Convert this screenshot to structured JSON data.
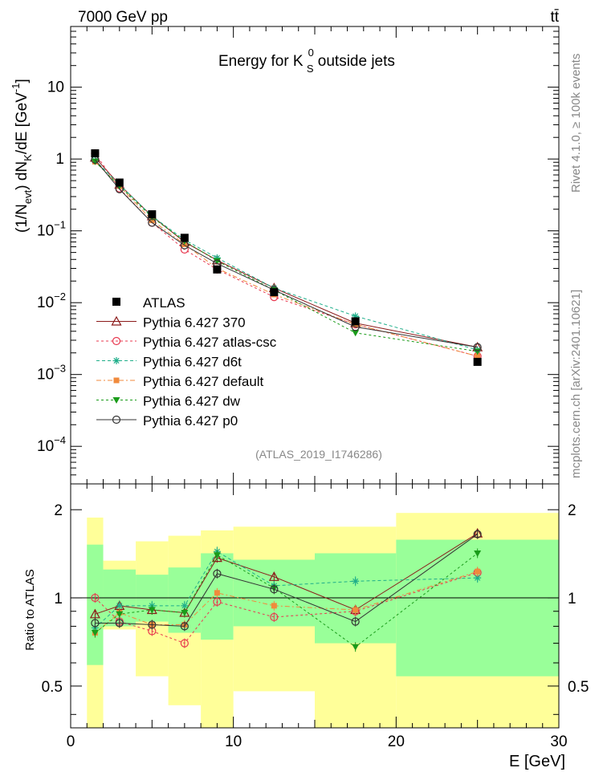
{
  "header": {
    "energy_label": "7000 GeV pp",
    "process_label": "tt̄"
  },
  "side_labels": {
    "rivet": "Rivet 4.1.0, ≥ 100k events",
    "mcplots": "mcplots.cern.ch [arXiv:2401.10621]"
  },
  "chart_data": [
    {
      "type": "line",
      "scale": "log",
      "title": "Energy for K_S^0 outside jets",
      "title_parts": {
        "pre": "Energy for K",
        "sup": "0",
        "sub": "S",
        "post": " outside jets"
      },
      "analysis_label": "(ATLAS_2019_I1746286)",
      "ylabel_parts": {
        "a": "(1/N",
        "a_sub": "evt",
        "b": ") dN",
        "b_sub": "K",
        "c": "/dE [GeV",
        "c_sup": "-1",
        "d": "]"
      },
      "xlim": [
        0,
        30
      ],
      "ylim": [
        3e-05,
        70
      ],
      "y_ticks": [
        {
          "value": 10,
          "label": "10",
          "exp": ""
        },
        {
          "value": 1,
          "label": "1",
          "exp": ""
        },
        {
          "value": 0.1,
          "label": "10",
          "exp": "−1"
        },
        {
          "value": 0.01,
          "label": "10",
          "exp": "−2"
        },
        {
          "value": 0.001,
          "label": "10",
          "exp": "−3"
        },
        {
          "value": 0.0001,
          "label": "10",
          "exp": "−4"
        }
      ],
      "x": [
        1.5,
        3,
        5,
        7,
        9,
        12.5,
        17.5,
        25
      ],
      "data": {
        "name": "ATLAS",
        "values": [
          1.2,
          0.47,
          0.17,
          0.08,
          0.029,
          0.014,
          0.0055,
          0.0015
        ]
      },
      "series": [
        {
          "name": "Pythia 6.427 370",
          "color": "#8b1a1a",
          "dash": "",
          "marker": "triangle-open",
          "values": [
            1.05,
            0.44,
            0.16,
            0.07,
            0.039,
            0.016,
            0.0052,
            0.0024
          ]
        },
        {
          "name": "Pythia 6.427 atlas-csc",
          "color": "#e8384f",
          "dash": "3,3",
          "marker": "circle-open",
          "values": [
            1.2,
            0.39,
            0.13,
            0.055,
            0.029,
            0.012,
            0.005,
            0.0018
          ]
        },
        {
          "name": "Pythia 6.427 d6t",
          "color": "#1fae8a",
          "dash": "4,3",
          "marker": "star",
          "values": [
            0.96,
            0.44,
            0.16,
            0.075,
            0.042,
            0.016,
            0.0065,
            0.0022
          ]
        },
        {
          "name": "Pythia 6.427 default",
          "color": "#f08a3c",
          "dash": "6,3,2,3",
          "marker": "square",
          "values": [
            0.92,
            0.42,
            0.14,
            0.065,
            0.03,
            0.013,
            0.005,
            0.0018
          ]
        },
        {
          "name": "Pythia 6.427 dw",
          "color": "#1a9c1a",
          "dash": "3,3",
          "marker": "triangle-down",
          "values": [
            0.92,
            0.42,
            0.155,
            0.072,
            0.038,
            0.015,
            0.0038,
            0.0021
          ]
        },
        {
          "name": "Pythia 6.427 p0",
          "color": "#333333",
          "dash": "",
          "marker": "circle-open",
          "values": [
            0.98,
            0.38,
            0.13,
            0.063,
            0.035,
            0.015,
            0.0046,
            0.0024
          ]
        }
      ]
    },
    {
      "type": "line",
      "scale": "log",
      "ylabel": "Ratio to ATLAS",
      "xlabel": "E [GeV]",
      "xlim": [
        0,
        30
      ],
      "ylim": [
        0.36,
        2.45
      ],
      "x_ticks": [
        0,
        10,
        20,
        30
      ],
      "y_ticks": [
        {
          "value": 2,
          "label": "2"
        },
        {
          "value": 1,
          "label": "1"
        },
        {
          "value": 0.5,
          "label": "0.5"
        }
      ],
      "bands": [
        {
          "xlow": 1,
          "xhigh": 2,
          "inner": [
            0.59,
            1.52
          ],
          "outer": [
            0.3,
            1.88
          ]
        },
        {
          "xlow": 2,
          "xhigh": 4,
          "inner": [
            0.8,
            1.25
          ],
          "outer": [
            0.78,
            1.34
          ]
        },
        {
          "xlow": 4,
          "xhigh": 6,
          "inner": [
            0.83,
            1.2
          ],
          "outer": [
            0.54,
            1.56
          ]
        },
        {
          "xlow": 6,
          "xhigh": 8,
          "inner": [
            0.76,
            1.27
          ],
          "outer": [
            0.43,
            1.63
          ]
        },
        {
          "xlow": 8,
          "xhigh": 10,
          "inner": [
            0.72,
            1.42
          ],
          "outer": [
            0.3,
            1.7
          ]
        },
        {
          "xlow": 10,
          "xhigh": 15,
          "inner": [
            0.8,
            1.35
          ],
          "outer": [
            0.48,
            1.75
          ]
        },
        {
          "xlow": 15,
          "xhigh": 20,
          "inner": [
            0.7,
            1.42
          ],
          "outer": [
            0.3,
            1.75
          ]
        },
        {
          "xlow": 20,
          "xhigh": 30,
          "inner": [
            0.54,
            1.58
          ],
          "outer": [
            0.3,
            1.95
          ]
        }
      ],
      "x": [
        1.5,
        3,
        5,
        7,
        9,
        12.5,
        17.5,
        25
      ],
      "series": [
        {
          "name": "Pythia 6.427 370",
          "values": [
            0.88,
            0.94,
            0.91,
            0.89,
            1.37,
            1.18,
            0.91,
            1.66
          ]
        },
        {
          "name": "Pythia 6.427 atlas-csc",
          "values": [
            1.0,
            0.83,
            0.77,
            0.7,
            0.97,
            0.86,
            0.9,
            1.22
          ]
        },
        {
          "name": "Pythia 6.427 d6t",
          "values": [
            0.79,
            0.94,
            0.94,
            0.94,
            1.44,
            1.1,
            1.14,
            1.17
          ]
        },
        {
          "name": "Pythia 6.427 default",
          "values": [
            0.76,
            0.89,
            0.81,
            0.81,
            1.04,
            0.94,
            0.91,
            1.23
          ]
        },
        {
          "name": "Pythia 6.427 dw",
          "values": [
            0.76,
            0.88,
            0.91,
            0.89,
            1.4,
            1.08,
            0.68,
            1.42
          ]
        },
        {
          "name": "Pythia 6.427 p0",
          "values": [
            0.82,
            0.82,
            0.81,
            0.8,
            1.21,
            1.07,
            0.83,
            1.65
          ]
        }
      ]
    }
  ]
}
